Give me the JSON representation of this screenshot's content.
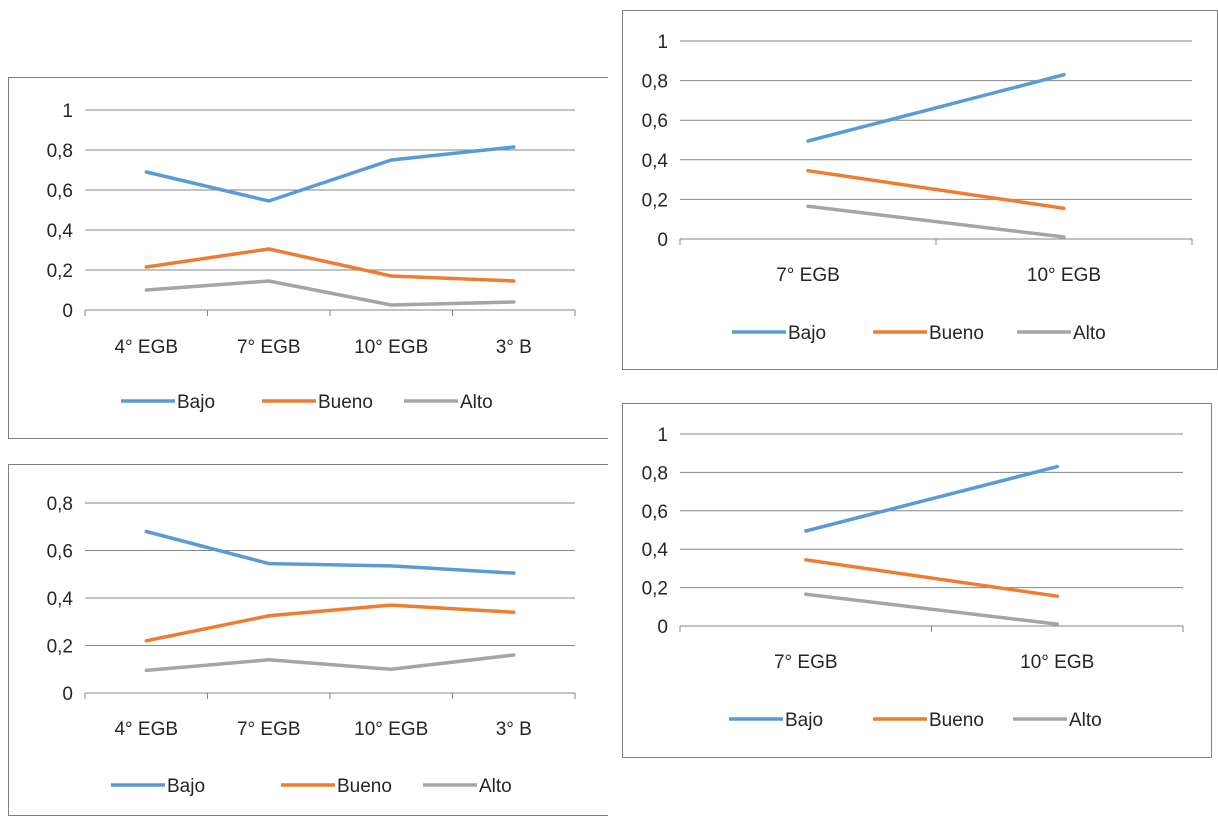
{
  "chart_data": [
    {
      "type": "line",
      "categories": [
        "4° EGB",
        "7° EGB",
        "10° EGB",
        "3° B"
      ],
      "ylim": [
        0,
        1
      ],
      "yticks": [
        "0",
        "0,2",
        "0,4",
        "0,6",
        "0,8",
        "1"
      ],
      "ytick_values": [
        0,
        0.2,
        0.4,
        0.6,
        0.8,
        1
      ],
      "grid": true,
      "legend": "bottom",
      "series": [
        {
          "name": "Bajo",
          "color": "#5b9bd5",
          "values": [
            0.69,
            0.545,
            0.75,
            0.815
          ]
        },
        {
          "name": "Bueno",
          "color": "#ed7d31",
          "values": [
            0.215,
            0.305,
            0.17,
            0.145
          ]
        },
        {
          "name": "Alto",
          "color": "#a5a5a5",
          "values": [
            0.1,
            0.145,
            0.025,
            0.04
          ]
        }
      ]
    },
    {
      "type": "line",
      "categories": [
        "4° EGB",
        "7° EGB",
        "10° EGB",
        "3° B"
      ],
      "ylim": [
        0,
        0.8
      ],
      "yticks": [
        "0",
        "0,2",
        "0,4",
        "0,6",
        "0,8"
      ],
      "ytick_values": [
        0,
        0.2,
        0.4,
        0.6,
        0.8
      ],
      "grid": true,
      "legend": "bottom",
      "series": [
        {
          "name": "Bajo",
          "color": "#5b9bd5",
          "values": [
            0.68,
            0.545,
            0.535,
            0.505
          ]
        },
        {
          "name": "Bueno",
          "color": "#ed7d31",
          "values": [
            0.22,
            0.325,
            0.37,
            0.34
          ]
        },
        {
          "name": "Alto",
          "color": "#a5a5a5",
          "values": [
            0.095,
            0.14,
            0.1,
            0.16
          ]
        }
      ]
    },
    {
      "type": "line",
      "categories": [
        "7° EGB",
        "10° EGB"
      ],
      "ylim": [
        0,
        1
      ],
      "yticks": [
        "0",
        "0,2",
        "0,4",
        "0,6",
        "0,8",
        "1"
      ],
      "ytick_values": [
        0,
        0.2,
        0.4,
        0.6,
        0.8,
        1
      ],
      "grid": true,
      "legend": "bottom",
      "series": [
        {
          "name": "Bajo",
          "color": "#5b9bd5",
          "values": [
            0.495,
            0.83
          ]
        },
        {
          "name": "Bueno",
          "color": "#ed7d31",
          "values": [
            0.345,
            0.155
          ]
        },
        {
          "name": "Alto",
          "color": "#a5a5a5",
          "values": [
            0.165,
            0.01
          ]
        }
      ]
    },
    {
      "type": "line",
      "categories": [
        "7° EGB",
        "10° EGB"
      ],
      "ylim": [
        0,
        1
      ],
      "yticks": [
        "0",
        "0,2",
        "0,4",
        "0,6",
        "0,8",
        "1"
      ],
      "ytick_values": [
        0,
        0.2,
        0.4,
        0.6,
        0.8,
        1
      ],
      "grid": true,
      "legend": "bottom",
      "series": [
        {
          "name": "Bajo",
          "color": "#5b9bd5",
          "values": [
            0.495,
            0.83
          ]
        },
        {
          "name": "Bueno",
          "color": "#ed7d31",
          "values": [
            0.345,
            0.155
          ]
        },
        {
          "name": "Alto",
          "color": "#a5a5a5",
          "values": [
            0.165,
            0.01
          ]
        }
      ]
    }
  ]
}
